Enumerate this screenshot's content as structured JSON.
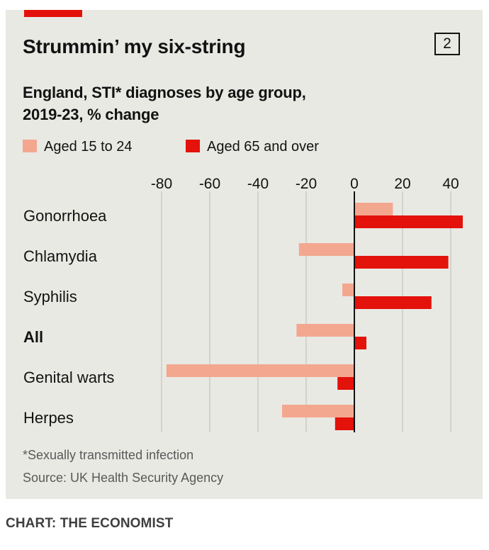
{
  "header": {
    "title": "Strummin’ my six-string",
    "chart_number": "2",
    "subtitle_line1": "England, STI* diagnoses by age group,",
    "subtitle_line2": "2019-23, % change"
  },
  "footer": {
    "footnote": "*Sexually transmitted infection",
    "source": "Source: UK Health Security Agency",
    "credit": "CHART: THE ECONOMIST"
  },
  "colors": {
    "aged_15_24": "#f4a78f",
    "aged_65_over": "#e3120b",
    "panel": "#e9e9e4",
    "gridline": "#bdbdb8",
    "axis": "#121212",
    "accent": "#e3120b"
  },
  "chart_data": {
    "type": "bar",
    "orientation": "horizontal",
    "title": "Strummin’ my six-string",
    "subtitle": "England, STI* diagnoses by age group, 2019-23, % change",
    "categories": [
      "Gonorrhoea",
      "Chlamydia",
      "Syphilis",
      "All",
      "Genital warts",
      "Herpes"
    ],
    "bold_categories": [
      "All"
    ],
    "series": [
      {
        "name": "Aged 15 to 24",
        "values": [
          16,
          -23,
          -5,
          -24,
          -78,
          -30
        ]
      },
      {
        "name": "Aged 65 and over",
        "values": [
          45,
          39,
          32,
          5,
          -7,
          -8
        ]
      }
    ],
    "xlim": [
      -80,
      45
    ],
    "xticks": [
      -80,
      -60,
      -40,
      -20,
      0,
      20,
      40
    ],
    "xtick_labels": [
      "-80",
      "-60",
      "-40",
      "-20",
      "0",
      "20",
      "40"
    ],
    "xlabel": "",
    "ylabel": "",
    "legend_position": "top-left",
    "grid": true
  }
}
